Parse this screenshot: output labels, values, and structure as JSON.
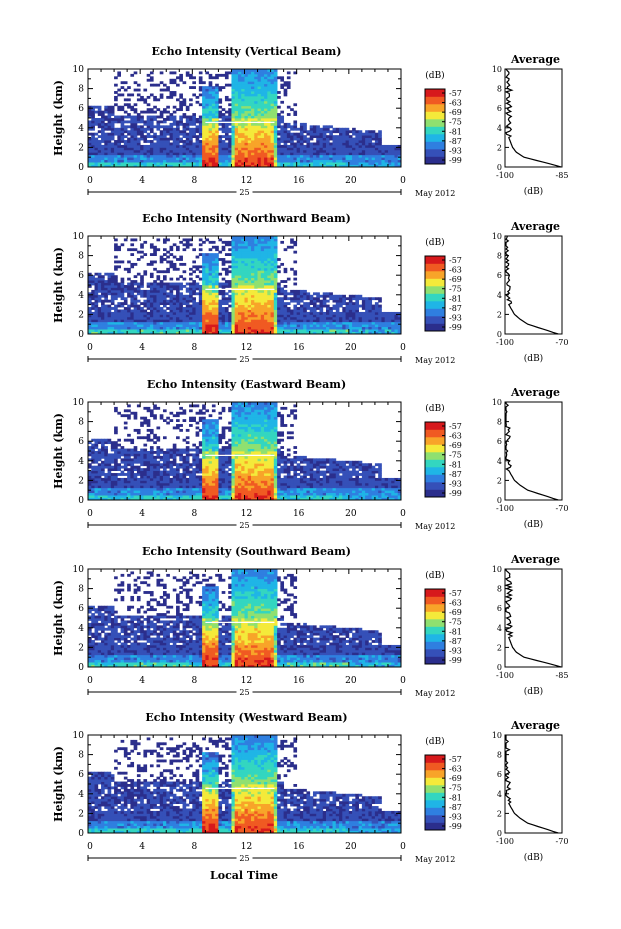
{
  "figure": {
    "xlabel": "Local Time",
    "date_day": "25",
    "date_month_year": "May 2012",
    "x_ticks": [
      "0",
      "4",
      "8",
      "12",
      "16",
      "20",
      "0"
    ],
    "y_ticks": [
      "0",
      "2",
      "4",
      "6",
      "8",
      "10"
    ],
    "ylabel": "Height (km)",
    "colorbar_unit": "(dB)",
    "colorbar_ticks": [
      "-57",
      "-63",
      "-69",
      "-75",
      "-81",
      "-87",
      "-93",
      "-99"
    ],
    "average_title": "Average",
    "average_xlabel": "(dB)"
  },
  "colors": {
    "colormap": [
      "#2b2e8c",
      "#3550b8",
      "#2f7fe0",
      "#1fb5e6",
      "#33d6c0",
      "#8fe070",
      "#f4ea3a",
      "#f8a429",
      "#f05a22",
      "#d7191c"
    ],
    "background": "#ffffff",
    "axis": "#000000"
  },
  "chart_data": [
    {
      "type": "heatmap",
      "title": "Echo Intensity (Vertical Beam)",
      "xlabel": "Local Time",
      "ylabel": "Height (km)",
      "xlim": [
        0,
        24
      ],
      "ylim": [
        0,
        10
      ],
      "colorbar": {
        "label": "(dB)",
        "range": [
          -99,
          -57
        ]
      },
      "average_profile": {
        "title": "Average",
        "xlabel": "(dB)",
        "xlim": [
          -100,
          -85
        ],
        "x_ticks": [
          "-100",
          "-85"
        ],
        "height_km": [
          0,
          0.5,
          1,
          1.5,
          2,
          3,
          4,
          5,
          6,
          7,
          8,
          9,
          10
        ],
        "values_db": [
          -85,
          -90,
          -95,
          -97,
          -98,
          -99,
          -99,
          -99,
          -99,
          -99,
          -99,
          -99,
          -100
        ]
      }
    },
    {
      "type": "heatmap",
      "title": "Echo Intensity (Northward Beam)",
      "xlabel": "Local Time",
      "ylabel": "Height (km)",
      "xlim": [
        0,
        24
      ],
      "ylim": [
        0,
        10
      ],
      "colorbar": {
        "label": "(dB)",
        "range": [
          -99,
          -57
        ]
      },
      "average_profile": {
        "title": "Average",
        "xlabel": "(dB)",
        "xlim": [
          -100,
          -70
        ],
        "x_ticks": [
          "-100",
          "-70"
        ],
        "height_km": [
          0,
          0.5,
          1,
          1.5,
          2,
          3,
          4,
          5,
          6,
          7,
          8,
          9,
          10
        ],
        "values_db": [
          -72,
          -80,
          -88,
          -92,
          -95,
          -98,
          -99,
          -99,
          -99,
          -99,
          -99,
          -100,
          -100
        ]
      }
    },
    {
      "type": "heatmap",
      "title": "Echo Intensity (Eastward Beam)",
      "xlabel": "Local Time",
      "ylabel": "Height (km)",
      "xlim": [
        0,
        24
      ],
      "ylim": [
        0,
        10
      ],
      "colorbar": {
        "label": "(dB)",
        "range": [
          -99,
          -57
        ]
      },
      "average_profile": {
        "title": "Average",
        "xlabel": "(dB)",
        "xlim": [
          -100,
          -70
        ],
        "x_ticks": [
          "-100",
          "-70"
        ],
        "height_km": [
          0,
          0.5,
          1,
          1.5,
          2,
          3,
          4,
          5,
          6,
          7,
          8,
          9,
          10
        ],
        "values_db": [
          -72,
          -80,
          -88,
          -92,
          -95,
          -98,
          -99,
          -99,
          -99,
          -99,
          -99,
          -100,
          -100
        ]
      }
    },
    {
      "type": "heatmap",
      "title": "Echo Intensity (Southward Beam)",
      "xlabel": "Local Time",
      "ylabel": "Height (km)",
      "xlim": [
        0,
        24
      ],
      "ylim": [
        0,
        10
      ],
      "colorbar": {
        "label": "(dB)",
        "range": [
          -99,
          -57
        ]
      },
      "average_profile": {
        "title": "Average",
        "xlabel": "(dB)",
        "xlim": [
          -100,
          -85
        ],
        "x_ticks": [
          "-100",
          "-85"
        ],
        "height_km": [
          0,
          0.5,
          1,
          1.5,
          2,
          3,
          4,
          5,
          6,
          7,
          8,
          9,
          10
        ],
        "values_db": [
          -85,
          -90,
          -95,
          -97,
          -98,
          -99,
          -99,
          -99,
          -99,
          -99,
          -99,
          -99,
          -100
        ]
      }
    },
    {
      "type": "heatmap",
      "title": "Echo Intensity (Westward Beam)",
      "xlabel": "Local Time",
      "ylabel": "Height (km)",
      "xlim": [
        0,
        24
      ],
      "ylim": [
        0,
        10
      ],
      "colorbar": {
        "label": "(dB)",
        "range": [
          -99,
          -57
        ]
      },
      "average_profile": {
        "title": "Average",
        "xlabel": "(dB)",
        "xlim": [
          -100,
          -70
        ],
        "x_ticks": [
          "-100",
          "-70"
        ],
        "height_km": [
          0,
          0.5,
          1,
          1.5,
          2,
          3,
          4,
          5,
          6,
          7,
          8,
          9,
          10
        ],
        "values_db": [
          -72,
          -80,
          -88,
          -92,
          -95,
          -98,
          -99,
          -99,
          -99,
          -99,
          -99,
          -100,
          -100
        ]
      }
    }
  ]
}
